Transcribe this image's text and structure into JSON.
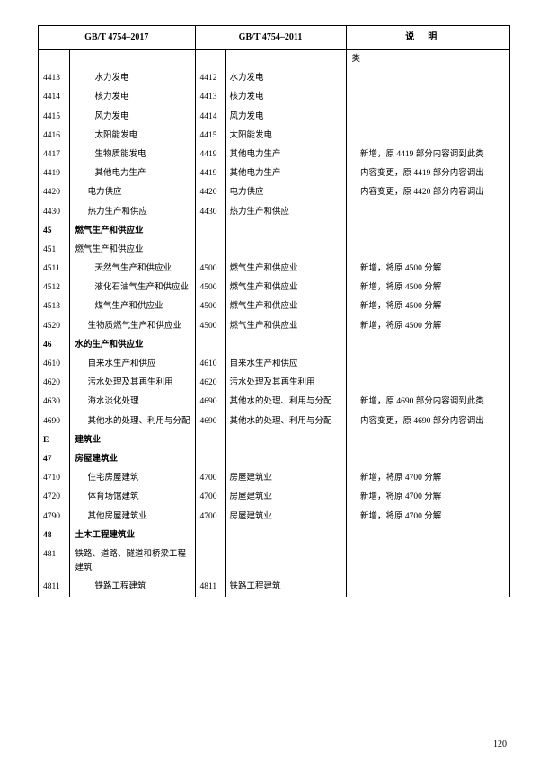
{
  "header": {
    "col2017": "GB/T 4754–2017",
    "col2011": "GB/T 4754–2011",
    "colNote": "说明"
  },
  "page_number": "120",
  "rows": [
    {
      "code2017": "",
      "name2017": "",
      "indent2017": 0,
      "bold2017": false,
      "code2011": "",
      "name2011": "",
      "note": "类"
    },
    {
      "code2017": "4413",
      "name2017": "水力发电",
      "indent2017": 2,
      "bold2017": false,
      "code2011": "4412",
      "name2011": "水力发电",
      "note": ""
    },
    {
      "code2017": "4414",
      "name2017": "核力发电",
      "indent2017": 2,
      "bold2017": false,
      "code2011": "4413",
      "name2011": "核力发电",
      "note": ""
    },
    {
      "code2017": "4415",
      "name2017": "风力发电",
      "indent2017": 2,
      "bold2017": false,
      "code2011": "4414",
      "name2011": "风力发电",
      "note": ""
    },
    {
      "code2017": "4416",
      "name2017": "太阳能发电",
      "indent2017": 2,
      "bold2017": false,
      "code2011": "4415",
      "name2011": "太阳能发电",
      "note": ""
    },
    {
      "code2017": "4417",
      "name2017": "生物质能发电",
      "indent2017": 2,
      "bold2017": false,
      "code2011": "4419",
      "name2011": "其他电力生产",
      "note": "　新增，原 4419 部分内容调到此类"
    },
    {
      "code2017": "4419",
      "name2017": "其他电力生产",
      "indent2017": 2,
      "bold2017": false,
      "code2011": "4419",
      "name2011": "其他电力生产",
      "note": "　内容变更，原 4419 部分内容调出"
    },
    {
      "code2017": "4420",
      "name2017": "电力供应",
      "indent2017": 1,
      "bold2017": false,
      "code2011": "4420",
      "name2011": "电力供应",
      "note": "　内容变更，原 4420 部分内容调出"
    },
    {
      "code2017": "4430",
      "name2017": "热力生产和供应",
      "indent2017": 1,
      "bold2017": false,
      "code2011": "4430",
      "name2011": "热力生产和供应",
      "note": ""
    },
    {
      "code2017": "45",
      "name2017": "燃气生产和供应业",
      "indent2017": 0,
      "bold2017": true,
      "code2011": "",
      "name2011": "",
      "note": ""
    },
    {
      "code2017": "451",
      "name2017": "燃气生产和供应业",
      "indent2017": 0,
      "bold2017": false,
      "code2011": "",
      "name2011": "",
      "note": ""
    },
    {
      "code2017": "4511",
      "name2017": "天然气生产和供应业",
      "indent2017": 2,
      "bold2017": false,
      "code2011": "4500",
      "name2011": "燃气生产和供应业",
      "note": "　新增，将原 4500 分解"
    },
    {
      "code2017": "4512",
      "name2017": "液化石油气生产和供应业",
      "indent2017": 2,
      "bold2017": false,
      "code2011": "4500",
      "name2011": "燃气生产和供应业",
      "note": "　新增，将原 4500 分解"
    },
    {
      "code2017": "4513",
      "name2017": "煤气生产和供应业",
      "indent2017": 2,
      "bold2017": false,
      "code2011": "4500",
      "name2011": "燃气生产和供应业",
      "note": "　新增，将原 4500 分解"
    },
    {
      "code2017": "4520",
      "name2017": "生物质燃气生产和供应业",
      "indent2017": 1,
      "bold2017": false,
      "code2011": "4500",
      "name2011": "燃气生产和供应业",
      "note": "　新增，将原 4500 分解"
    },
    {
      "code2017": "46",
      "name2017": "水的生产和供应业",
      "indent2017": 0,
      "bold2017": true,
      "code2011": "",
      "name2011": "",
      "note": ""
    },
    {
      "code2017": "4610",
      "name2017": "自来水生产和供应",
      "indent2017": 1,
      "bold2017": false,
      "code2011": "4610",
      "name2011": "自来水生产和供应",
      "note": ""
    },
    {
      "code2017": "4620",
      "name2017": "污水处理及其再生利用",
      "indent2017": 1,
      "bold2017": false,
      "code2011": "4620",
      "name2011": "污水处理及其再生利用",
      "note": ""
    },
    {
      "code2017": "4630",
      "name2017": "海水淡化处理",
      "indent2017": 1,
      "bold2017": false,
      "code2011": "4690",
      "name2011": "其他水的处理、利用与分配",
      "note": "　新增，原 4690 部分内容调到此类"
    },
    {
      "code2017": "4690",
      "name2017": "其他水的处理、利用与分配",
      "indent2017": 1,
      "bold2017": false,
      "code2011": "4690",
      "name2011": "其他水的处理、利用与分配",
      "note": "　内容变更，原 4690 部分内容调出"
    },
    {
      "code2017": "E",
      "name2017": "建筑业",
      "indent2017": 0,
      "bold2017": true,
      "code2011": "",
      "name2011": "",
      "note": ""
    },
    {
      "code2017": "47",
      "name2017": "房屋建筑业",
      "indent2017": 0,
      "bold2017": true,
      "code2011": "",
      "name2011": "",
      "note": ""
    },
    {
      "code2017": "4710",
      "name2017": "住宅房屋建筑",
      "indent2017": 1,
      "bold2017": false,
      "code2011": "4700",
      "name2011": "房屋建筑业",
      "note": "　新增，将原 4700 分解"
    },
    {
      "code2017": "4720",
      "name2017": "体育场馆建筑",
      "indent2017": 1,
      "bold2017": false,
      "code2011": "4700",
      "name2011": "房屋建筑业",
      "note": "　新增，将原 4700 分解"
    },
    {
      "code2017": "4790",
      "name2017": "其他房屋建筑业",
      "indent2017": 1,
      "bold2017": false,
      "code2011": "4700",
      "name2011": "房屋建筑业",
      "note": "　新增，将原 4700 分解"
    },
    {
      "code2017": "48",
      "name2017": "土木工程建筑业",
      "indent2017": 0,
      "bold2017": true,
      "code2011": "",
      "name2011": "",
      "note": ""
    },
    {
      "code2017": "481",
      "name2017": "铁路、道路、隧道和桥梁工程建筑",
      "indent2017": 0,
      "bold2017": false,
      "code2011": "",
      "name2011": "",
      "note": ""
    },
    {
      "code2017": "4811",
      "name2017": "铁路工程建筑",
      "indent2017": 2,
      "bold2017": false,
      "code2011": "4811",
      "name2011": "铁路工程建筑",
      "note": ""
    }
  ]
}
